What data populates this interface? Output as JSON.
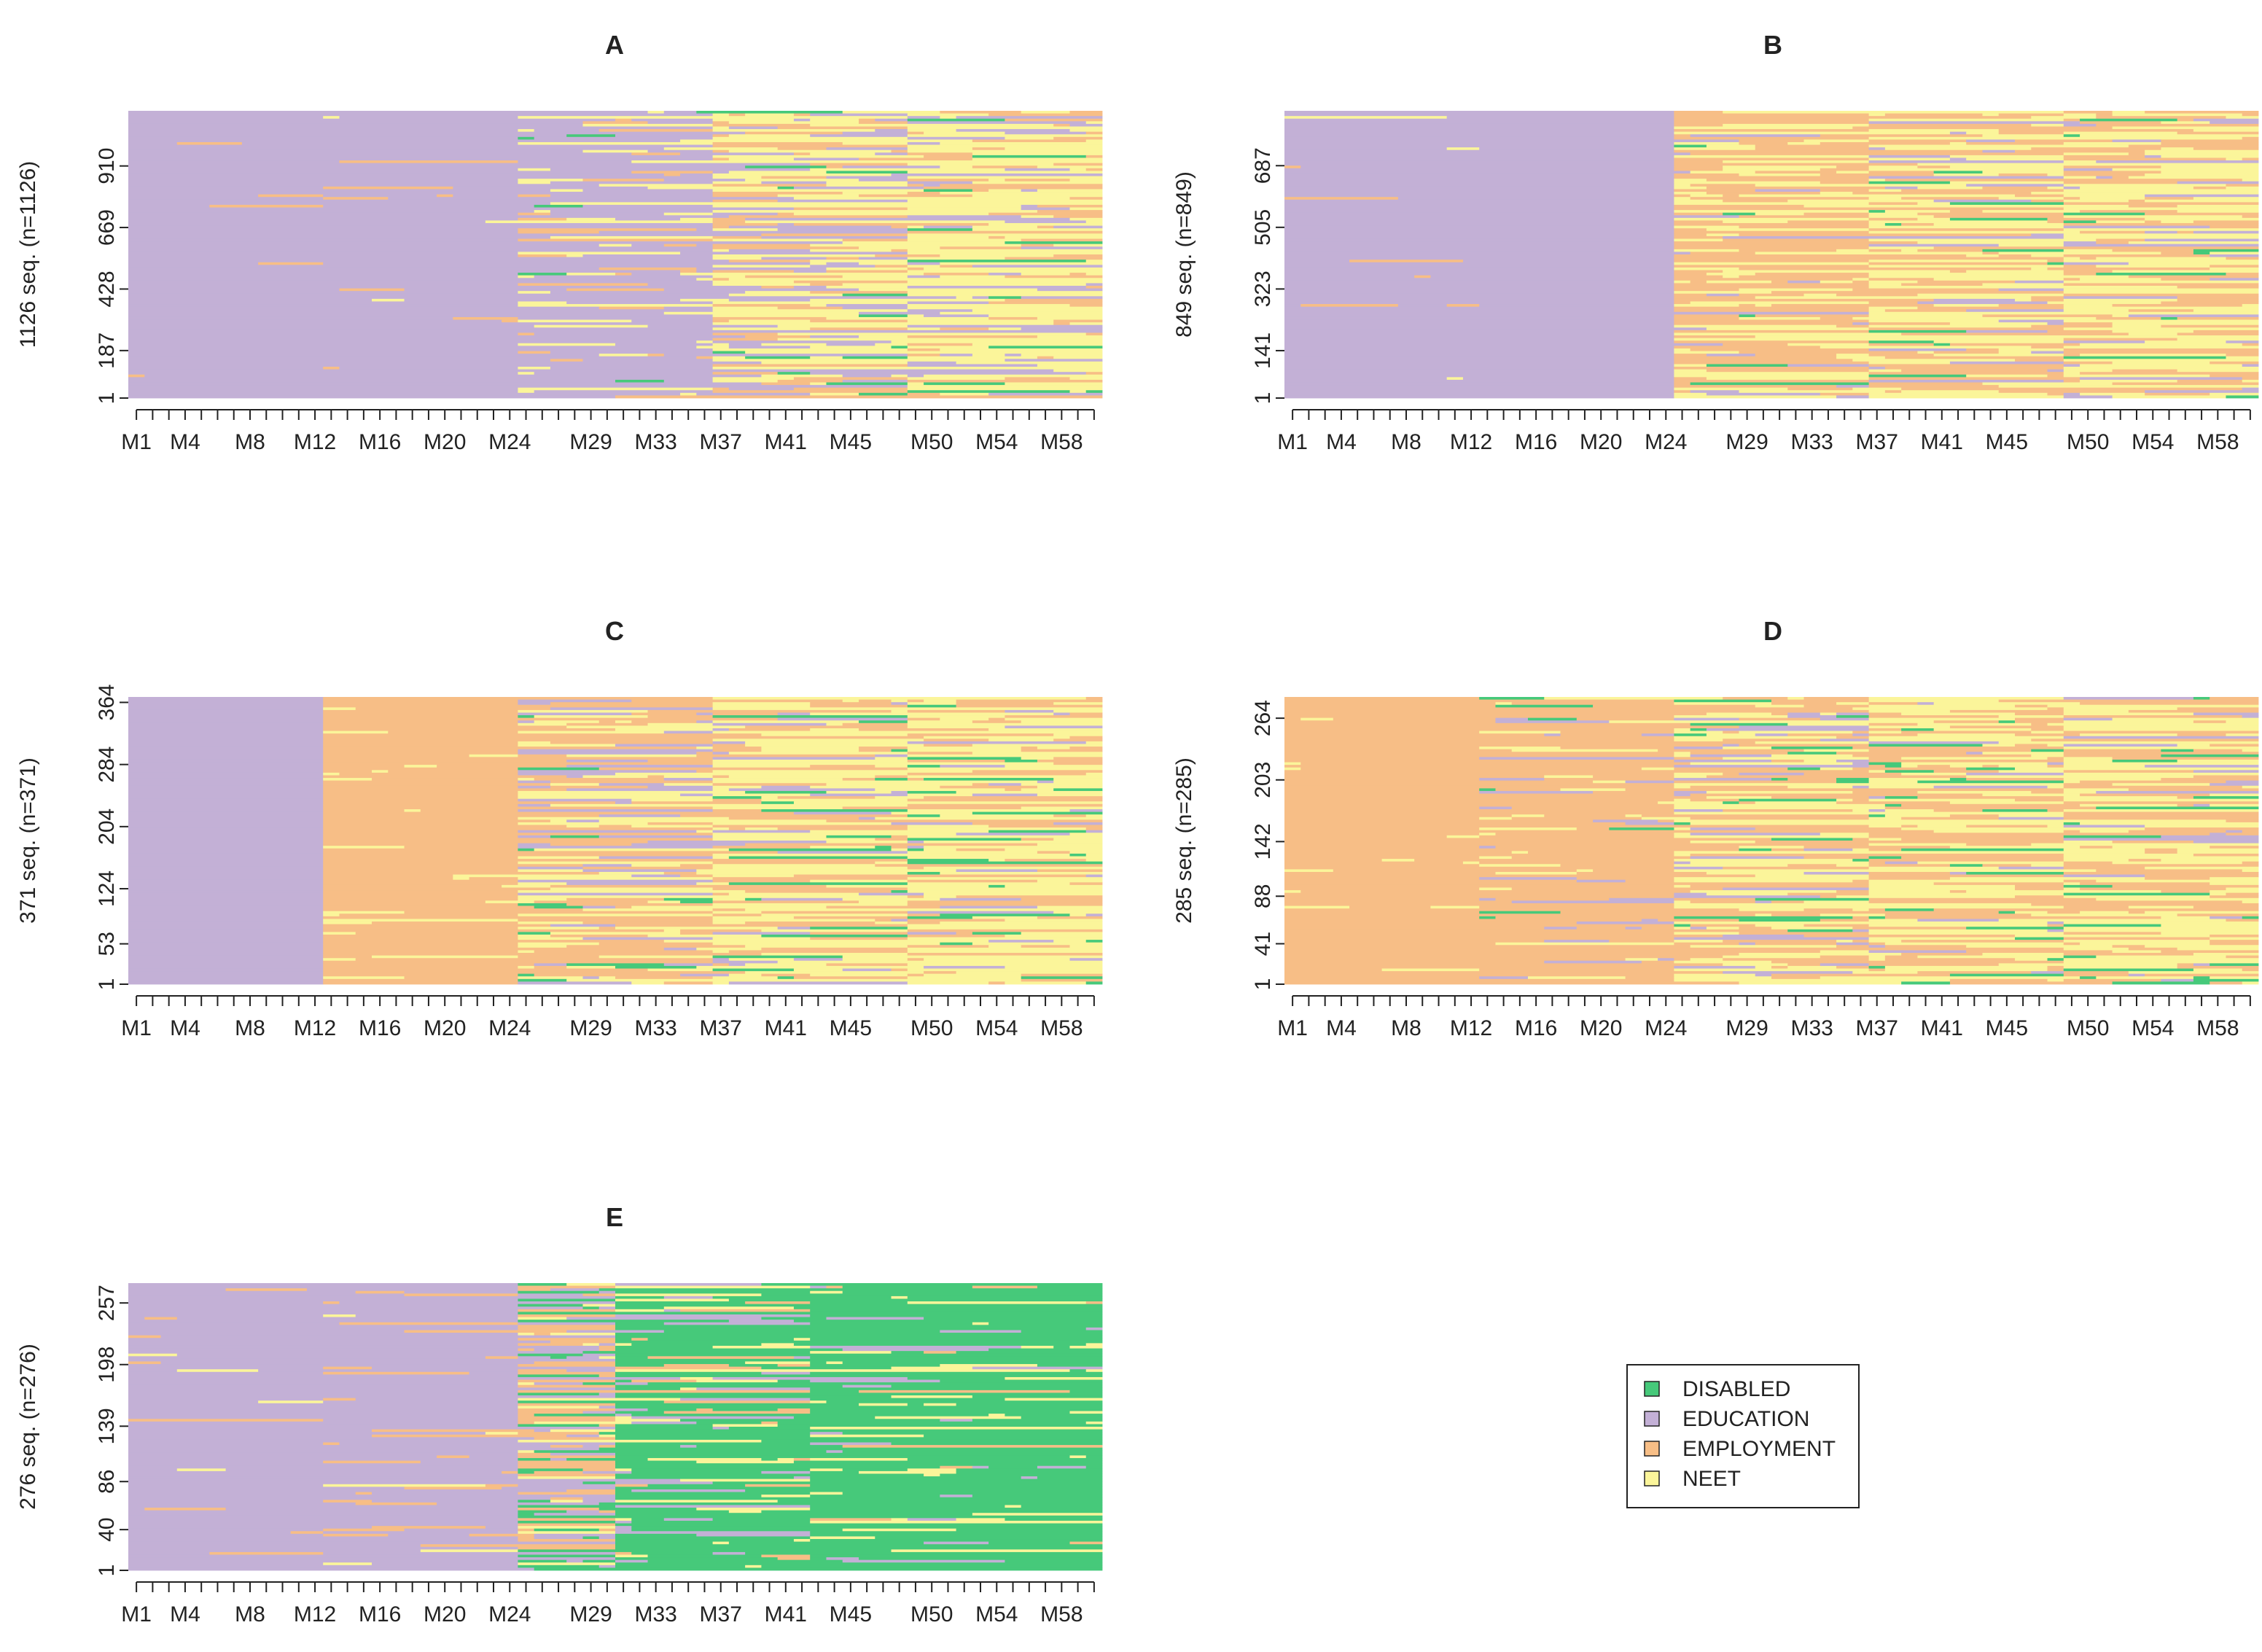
{
  "chart_data": {
    "type": "heatmap",
    "description_kind": "sequence index plots",
    "states": [
      "DISABLED",
      "EDUCATION",
      "EMPLOYMENT",
      "NEET"
    ],
    "state_colors": {
      "DISABLED": "#46c97a",
      "EDUCATION": "#c3b0d6",
      "EMPLOYMENT": "#f7be86",
      "NEET": "#fbf59a"
    },
    "x_tick_labels": [
      "M1",
      "M4",
      "M8",
      "M12",
      "M16",
      "M20",
      "M24",
      "M29",
      "M33",
      "M37",
      "M41",
      "M45",
      "M50",
      "M54",
      "M58"
    ],
    "months": 60,
    "legend": {
      "entries": [
        "DISABLED",
        "EDUCATION",
        "EMPLOYMENT",
        "NEET"
      ],
      "placement": "bottom-right"
    },
    "panels": [
      {
        "id": "A",
        "title": "A",
        "ylabel": "1126 seq. (n=1126)",
        "y_ticks": [
          "1",
          "187",
          "428",
          "669",
          "910"
        ],
        "y_tick_values": [
          1,
          187,
          428,
          669,
          910
        ],
        "n": 1126,
        "phases": [
          {
            "from": 1,
            "to": 12,
            "dominant": "EDUCATION",
            "mix": {
              "EDUCATION": 0.97,
              "EMPLOYMENT": 0.02,
              "NEET": 0.01,
              "DISABLED": 0
            }
          },
          {
            "from": 13,
            "to": 24,
            "dominant": "EDUCATION",
            "mix": {
              "EDUCATION": 0.97,
              "EMPLOYMENT": 0.02,
              "NEET": 0.01,
              "DISABLED": 0
            }
          },
          {
            "from": 25,
            "to": 36,
            "dominant": "EDUCATION",
            "mix": {
              "EDUCATION": 0.78,
              "NEET": 0.12,
              "EMPLOYMENT": 0.08,
              "DISABLED": 0.02
            }
          },
          {
            "from": 37,
            "to": 48,
            "dominant": "NEET",
            "mix": {
              "NEET": 0.45,
              "EDUCATION": 0.3,
              "EMPLOYMENT": 0.22,
              "DISABLED": 0.03
            }
          },
          {
            "from": 49,
            "to": 60,
            "dominant": "NEET",
            "mix": {
              "NEET": 0.55,
              "EMPLOYMENT": 0.25,
              "EDUCATION": 0.17,
              "DISABLED": 0.03
            }
          }
        ]
      },
      {
        "id": "B",
        "title": "B",
        "ylabel": "849 seq. (n=849)",
        "y_ticks": [
          "1",
          "141",
          "323",
          "505",
          "687"
        ],
        "y_tick_values": [
          1,
          141,
          323,
          505,
          687
        ],
        "n": 849,
        "phases": [
          {
            "from": 1,
            "to": 12,
            "dominant": "EDUCATION",
            "mix": {
              "EDUCATION": 0.96,
              "EMPLOYMENT": 0.03,
              "NEET": 0.01,
              "DISABLED": 0
            }
          },
          {
            "from": 13,
            "to": 24,
            "dominant": "EDUCATION",
            "mix": {
              "EDUCATION": 1,
              "EMPLOYMENT": 0,
              "NEET": 0,
              "DISABLED": 0
            }
          },
          {
            "from": 25,
            "to": 36,
            "dominant": "EMPLOYMENT",
            "mix": {
              "EMPLOYMENT": 0.55,
              "NEET": 0.35,
              "EDUCATION": 0.08,
              "DISABLED": 0.02
            }
          },
          {
            "from": 37,
            "to": 48,
            "dominant": "NEET",
            "mix": {
              "NEET": 0.5,
              "EMPLOYMENT": 0.38,
              "EDUCATION": 0.09,
              "DISABLED": 0.03
            }
          },
          {
            "from": 49,
            "to": 60,
            "dominant": "NEET",
            "mix": {
              "NEET": 0.5,
              "EMPLOYMENT": 0.37,
              "EDUCATION": 0.1,
              "DISABLED": 0.03
            }
          }
        ]
      },
      {
        "id": "C",
        "title": "C",
        "ylabel": "371 seq. (n=371)",
        "y_ticks": [
          "1",
          "53",
          "124",
          "204",
          "284",
          "364"
        ],
        "y_tick_values": [
          1,
          53,
          124,
          204,
          284,
          364
        ],
        "n": 371,
        "phases": [
          {
            "from": 1,
            "to": 12,
            "dominant": "EDUCATION",
            "mix": {
              "EDUCATION": 1,
              "EMPLOYMENT": 0,
              "NEET": 0,
              "DISABLED": 0
            }
          },
          {
            "from": 13,
            "to": 24,
            "dominant": "EMPLOYMENT",
            "mix": {
              "EMPLOYMENT": 0.93,
              "NEET": 0.07,
              "EDUCATION": 0,
              "DISABLED": 0
            }
          },
          {
            "from": 25,
            "to": 36,
            "dominant": "EMPLOYMENT",
            "mix": {
              "EMPLOYMENT": 0.45,
              "NEET": 0.33,
              "EDUCATION": 0.17,
              "DISABLED": 0.05
            }
          },
          {
            "from": 37,
            "to": 48,
            "dominant": "NEET",
            "mix": {
              "NEET": 0.45,
              "EMPLOYMENT": 0.35,
              "EDUCATION": 0.13,
              "DISABLED": 0.07
            }
          },
          {
            "from": 49,
            "to": 60,
            "dominant": "NEET",
            "mix": {
              "NEET": 0.5,
              "EMPLOYMENT": 0.32,
              "EDUCATION": 0.1,
              "DISABLED": 0.08
            }
          }
        ]
      },
      {
        "id": "D",
        "title": "D",
        "ylabel": "285 seq. (n=285)",
        "y_ticks": [
          "1",
          "41",
          "88",
          "142",
          "203",
          "264"
        ],
        "y_tick_values": [
          1,
          41,
          88,
          142,
          203,
          264
        ],
        "n": 285,
        "phases": [
          {
            "from": 1,
            "to": 12,
            "dominant": "EMPLOYMENT",
            "mix": {
              "EMPLOYMENT": 0.96,
              "NEET": 0.04,
              "EDUCATION": 0,
              "DISABLED": 0
            }
          },
          {
            "from": 13,
            "to": 24,
            "dominant": "EMPLOYMENT",
            "mix": {
              "EMPLOYMENT": 0.85,
              "NEET": 0.07,
              "EDUCATION": 0.06,
              "DISABLED": 0.02
            }
          },
          {
            "from": 25,
            "to": 36,
            "dominant": "EMPLOYMENT",
            "mix": {
              "EMPLOYMENT": 0.45,
              "NEET": 0.38,
              "EDUCATION": 0.12,
              "DISABLED": 0.05
            }
          },
          {
            "from": 37,
            "to": 48,
            "dominant": "NEET",
            "mix": {
              "NEET": 0.48,
              "EMPLOYMENT": 0.37,
              "EDUCATION": 0.08,
              "DISABLED": 0.07
            }
          },
          {
            "from": 49,
            "to": 60,
            "dominant": "NEET",
            "mix": {
              "NEET": 0.5,
              "EMPLOYMENT": 0.35,
              "EDUCATION": 0.08,
              "DISABLED": 0.07
            }
          }
        ]
      },
      {
        "id": "E",
        "title": "E",
        "ylabel": "276 seq. (n=276)",
        "y_ticks": [
          "1",
          "40",
          "86",
          "139",
          "198",
          "257"
        ],
        "y_tick_values": [
          1,
          40,
          86,
          139,
          198,
          257
        ],
        "n": 276,
        "phases": [
          {
            "from": 1,
            "to": 12,
            "dominant": "EDUCATION",
            "mix": {
              "EDUCATION": 0.94,
              "EMPLOYMENT": 0.05,
              "NEET": 0.01,
              "DISABLED": 0
            }
          },
          {
            "from": 13,
            "to": 24,
            "dominant": "EDUCATION",
            "mix": {
              "EDUCATION": 0.9,
              "EMPLOYMENT": 0.08,
              "NEET": 0.02,
              "DISABLED": 0
            }
          },
          {
            "from": 25,
            "to": 30,
            "dominant": "EDUCATION",
            "mix": {
              "EDUCATION": 0.4,
              "EMPLOYMENT": 0.3,
              "DISABLED": 0.2,
              "NEET": 0.1
            }
          },
          {
            "from": 31,
            "to": 42,
            "dominant": "DISABLED",
            "mix": {
              "DISABLED": 0.72,
              "EDUCATION": 0.1,
              "NEET": 0.1,
              "EMPLOYMENT": 0.08
            }
          },
          {
            "from": 43,
            "to": 60,
            "dominant": "DISABLED",
            "mix": {
              "DISABLED": 0.84,
              "NEET": 0.08,
              "EDUCATION": 0.05,
              "EMPLOYMENT": 0.03
            }
          }
        ]
      }
    ]
  }
}
